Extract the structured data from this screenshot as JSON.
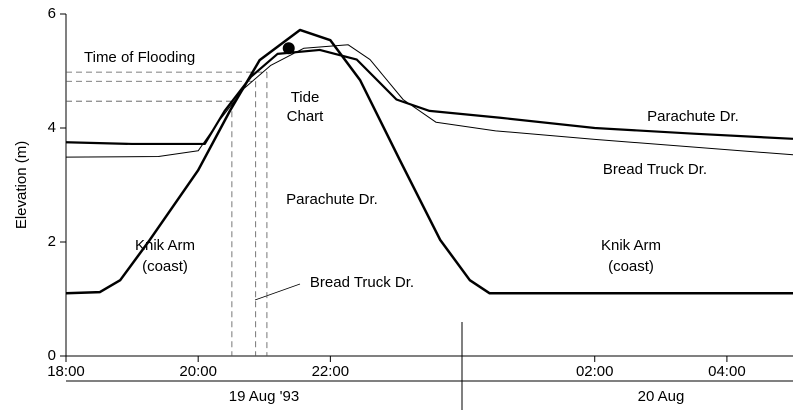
{
  "chart_data": {
    "type": "line",
    "y_label": "Elevation (m)",
    "xlim": [
      0,
      11
    ],
    "xticks": [
      {
        "value": 0,
        "label": "18:00"
      },
      {
        "value": 2,
        "label": "20:00"
      },
      {
        "value": 4,
        "label": "22:00"
      },
      {
        "value": 8,
        "label": "02:00"
      },
      {
        "value": 10,
        "label": "04:00"
      }
    ],
    "ylim": [
      0,
      6
    ],
    "yticks": [
      0,
      2,
      4,
      6
    ],
    "date_labels": [
      "19 Aug '93",
      "20 Aug"
    ],
    "series": [
      {
        "name": "Knik Arm",
        "color": "#000000",
        "line_width": 2.5,
        "x": [
          0,
          0.51,
          0.82,
          1.27,
          2.0,
          2.48,
          2.93,
          3.54,
          4.0,
          4.45,
          5.05,
          5.66,
          6.11,
          6.41,
          11
        ],
        "values": [
          1.1,
          1.12,
          1.33,
          2.04,
          3.26,
          4.3,
          5.19,
          5.72,
          5.54,
          4.84,
          3.44,
          2.04,
          1.33,
          1.1,
          1.1
        ]
      },
      {
        "name": "Parachute Dr.",
        "color": "#000000",
        "line_width": 2.2,
        "x": [
          0,
          1.0,
          2.1,
          2.4,
          2.8,
          3.2,
          3.84,
          4.4,
          5.0,
          5.5,
          6.57,
          8,
          9.5,
          11
        ],
        "values": [
          3.75,
          3.72,
          3.72,
          4.3,
          4.9,
          5.3,
          5.37,
          5.2,
          4.5,
          4.3,
          4.18,
          4.0,
          3.9,
          3.81
        ]
      },
      {
        "name": "Bread Truck Dr.",
        "color": "#000000",
        "line_width": 1,
        "x": [
          0,
          1.4,
          2.0,
          2.3,
          2.7,
          3.1,
          3.6,
          4.27,
          4.6,
          5.1,
          5.6,
          6.5,
          8,
          11
        ],
        "values": [
          3.49,
          3.5,
          3.6,
          4.1,
          4.7,
          5.1,
          5.4,
          5.46,
          5.2,
          4.5,
          4.1,
          3.95,
          3.8,
          3.53
        ]
      }
    ],
    "tide_chart": {
      "label": [
        "Tide",
        "Chart"
      ],
      "x": 3.37,
      "value": 5.4
    },
    "flooding_label": "Time of Flooding",
    "flood_levels": [
      {
        "time": 2.51,
        "elevation": 4.47
      },
      {
        "time": 2.87,
        "elevation": 4.82
      },
      {
        "time": 3.04,
        "elevation": 4.98
      }
    ],
    "knik_arm_label": [
      "Knik Arm",
      "(coast)"
    ]
  }
}
